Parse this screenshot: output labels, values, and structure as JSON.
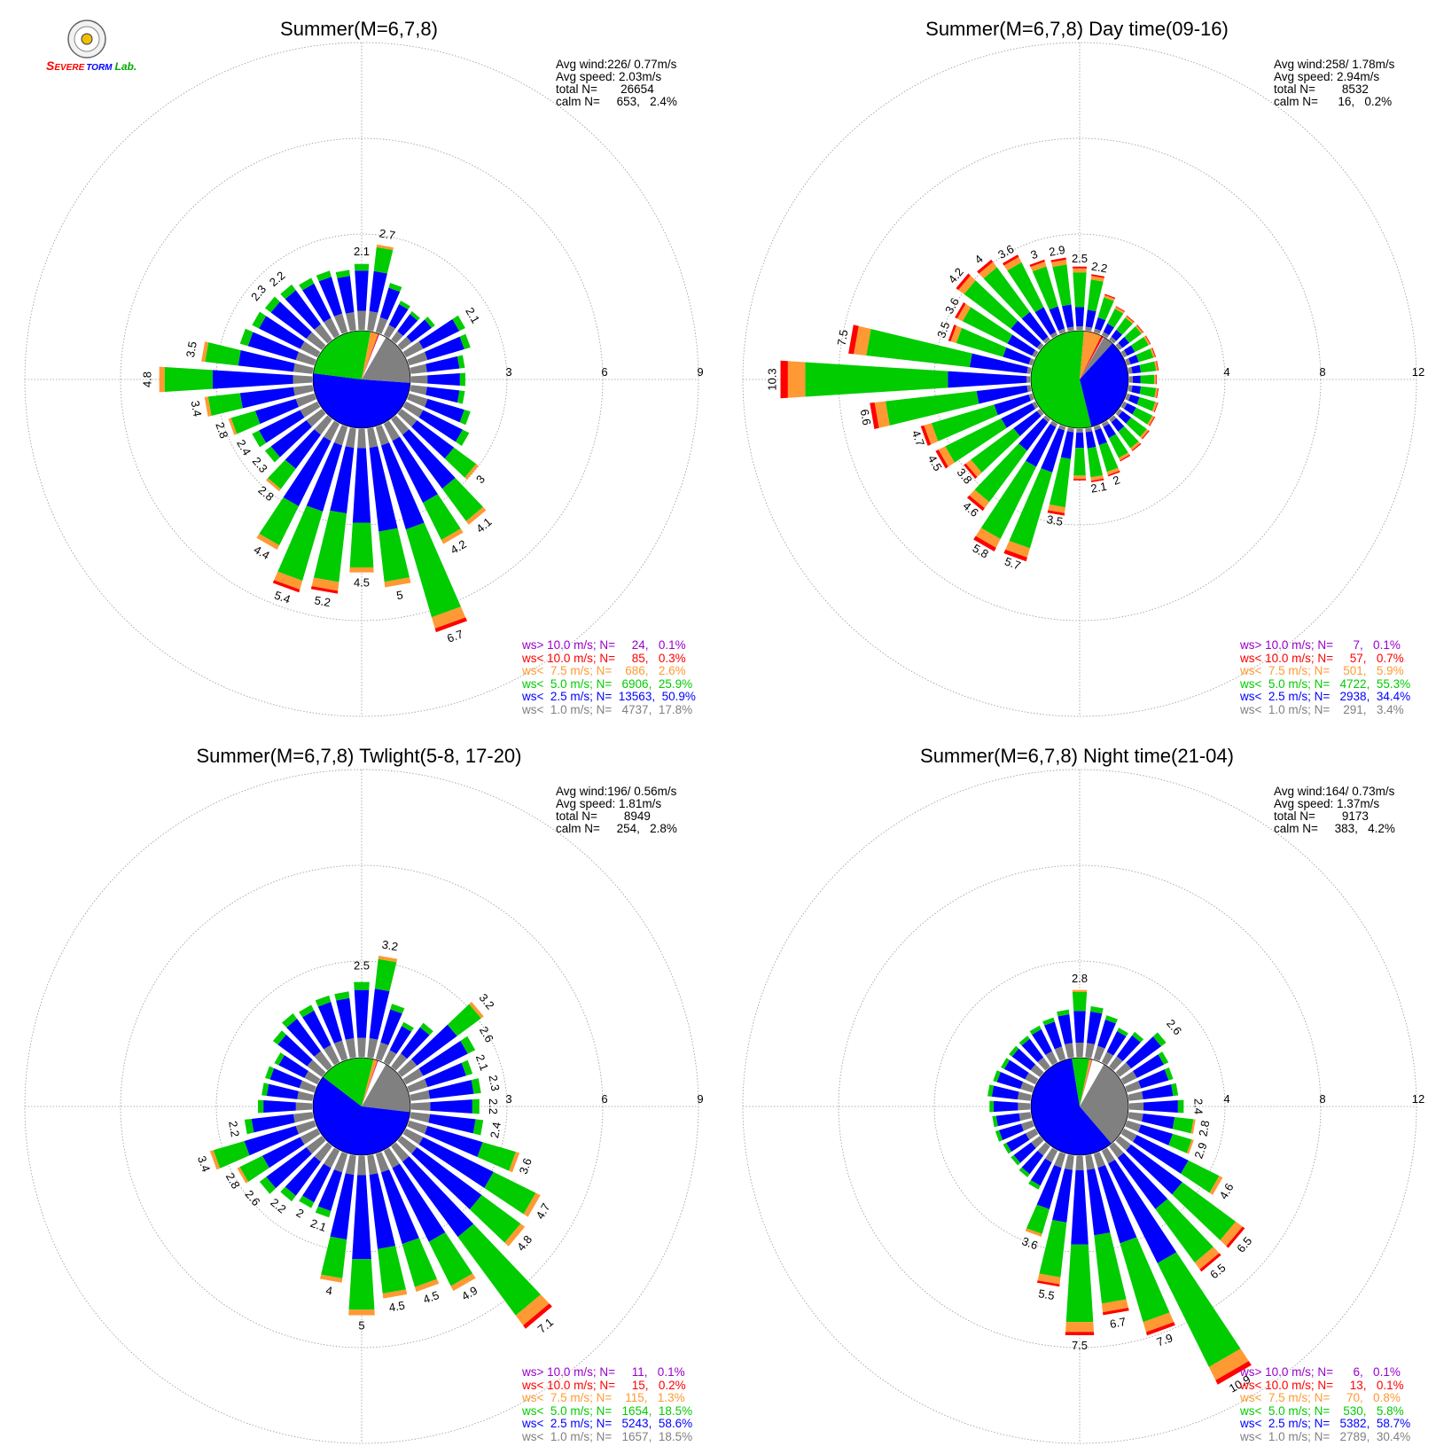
{
  "logo": {
    "text_s": "S",
    "text_evere": "EVERE",
    "text_torm": "TORM",
    "text_lab": "Lab."
  },
  "colors": {
    "gray": "#808080",
    "blue": "#0000ff",
    "green": "#00cc00",
    "orange": "#ff9933",
    "red": "#ff0000",
    "purple": "#9900cc",
    "grid": "#999999"
  },
  "panels": [
    {
      "title": "Summer(M=6,7,8)",
      "stats": {
        "avg_wind": "Avg wind:226/ 0.77m/s",
        "avg_speed": "Avg speed: 2.03m/s",
        "total": "total N=       26654",
        "calm": "calm N=     653,   2.4%"
      },
      "legend": [
        {
          "text": "ws> 10.0 m/s; N=     24,   0.1%",
          "color": "#9900cc"
        },
        {
          "text": "ws< 10.0 m/s; N=     85,   0.3%",
          "color": "#ff0000"
        },
        {
          "text": "ws<  7.5 m/s; N=    686,   2.6%",
          "color": "#ff9933"
        },
        {
          "text": "ws<  5.0 m/s; N=   6906,  25.9%",
          "color": "#00cc00"
        },
        {
          "text": "ws<  2.5 m/s; N=  13563,  50.9%",
          "color": "#0000ff"
        },
        {
          "text": "ws<  1.0 m/s; N=   4737,  17.8%",
          "color": "#808080"
        }
      ],
      "chart_data": {
        "type": "wind-rose",
        "ring_ticks": [
          "3",
          "6",
          "9"
        ],
        "max": 9,
        "hub_pie_fractions": {
          "gray": 0.178,
          "blue": 0.509,
          "green": 0.259,
          "orange": 0.026,
          "red": 0.003,
          "purple": 0.001
        },
        "directions_deg": [
          0,
          10,
          20,
          30,
          40,
          50,
          60,
          70,
          80,
          90,
          100,
          110,
          120,
          130,
          140,
          150,
          160,
          170,
          180,
          190,
          200,
          210,
          220,
          230,
          240,
          250,
          260,
          270,
          280,
          290,
          300,
          310,
          320,
          330,
          340,
          350
        ],
        "totals": [
          2.1,
          2.7,
          1.6,
          1.2,
          1.1,
          1.3,
          2.1,
          2.0,
          1.7,
          1.7,
          1.7,
          2.0,
          2.3,
          3.0,
          4.1,
          4.2,
          6.7,
          5.0,
          4.5,
          5.2,
          5.4,
          4.4,
          2.8,
          2.3,
          2.4,
          2.8,
          3.4,
          4.8,
          3.5,
          2.6,
          2.4,
          2.3,
          2.2,
          2.0,
          2.0,
          1.9
        ],
        "labeled_values": [
          2.1,
          2.7,
          null,
          null,
          null,
          null,
          2.1,
          null,
          null,
          null,
          null,
          null,
          null,
          3.0,
          4.1,
          4.2,
          6.7,
          5.0,
          4.5,
          5.2,
          5.4,
          4.4,
          2.8,
          2.3,
          2.4,
          2.8,
          3.4,
          4.8,
          3.5,
          null,
          null,
          2.3,
          2.2,
          null,
          null,
          null
        ]
      }
    },
    {
      "title": "Summer(M=6,7,8) Day time(09-16)",
      "stats": {
        "avg_wind": "Avg wind:258/ 1.78m/s",
        "avg_speed": "Avg speed: 2.94m/s",
        "total": "total N=        8532",
        "calm": "calm N=      16,   0.2%"
      },
      "legend": [
        {
          "text": "ws> 10.0 m/s; N=      7,   0.1%",
          "color": "#9900cc"
        },
        {
          "text": "ws< 10.0 m/s; N=     57,   0.7%",
          "color": "#ff0000"
        },
        {
          "text": "ws<  7.5 m/s; N=    501,   5.9%",
          "color": "#ff9933"
        },
        {
          "text": "ws<  5.0 m/s; N=   4722,  55.3%",
          "color": "#00cc00"
        },
        {
          "text": "ws<  2.5 m/s; N=   2938,  34.4%",
          "color": "#0000ff"
        },
        {
          "text": "ws<  1.0 m/s; N=    291,   3.4%",
          "color": "#808080"
        }
      ],
      "chart_data": {
        "type": "wind-rose",
        "ring_ticks": [
          "4",
          "8",
          "12"
        ],
        "max": 12,
        "hub_pie_fractions": {
          "gray": 0.034,
          "blue": 0.344,
          "green": 0.553,
          "orange": 0.059,
          "red": 0.007,
          "purple": 0.001
        },
        "directions_deg": [
          0,
          10,
          20,
          30,
          40,
          50,
          60,
          70,
          80,
          90,
          100,
          110,
          120,
          130,
          140,
          150,
          160,
          170,
          180,
          190,
          200,
          210,
          220,
          230,
          240,
          250,
          260,
          270,
          280,
          290,
          300,
          310,
          320,
          330,
          340,
          350
        ],
        "totals": [
          2.5,
          2.2,
          1.5,
          1.2,
          1.1,
          1.1,
          1.1,
          1.1,
          1.1,
          1.0,
          1.1,
          1.2,
          1.3,
          1.4,
          1.5,
          1.6,
          2.0,
          2.1,
          2.0,
          3.5,
          5.7,
          5.8,
          4.6,
          3.8,
          4.5,
          4.7,
          6.6,
          10.3,
          7.5,
          3.5,
          3.6,
          4.2,
          4.0,
          3.6,
          3.0,
          2.9
        ],
        "labeled_values": [
          2.5,
          2.2,
          null,
          null,
          null,
          null,
          null,
          null,
          null,
          null,
          null,
          null,
          null,
          null,
          null,
          null,
          2.0,
          2.1,
          null,
          3.5,
          5.7,
          5.8,
          4.6,
          3.8,
          4.5,
          4.7,
          6.6,
          10.3,
          7.5,
          3.5,
          3.6,
          4.2,
          4.0,
          3.6,
          3.0,
          2.9
        ]
      }
    },
    {
      "title": "Summer(M=6,7,8) Twlight(5-8, 17-20)",
      "stats": {
        "avg_wind": "Avg wind:196/ 0.56m/s",
        "avg_speed": "Avg speed: 1.81m/s",
        "total": "total N=        8949",
        "calm": "calm N=     254,   2.8%"
      },
      "legend": [
        {
          "text": "ws> 10.0 m/s; N=     11,   0.1%",
          "color": "#9900cc"
        },
        {
          "text": "ws< 10.0 m/s; N=     15,   0.2%",
          "color": "#ff0000"
        },
        {
          "text": "ws<  7.5 m/s; N=    115,   1.3%",
          "color": "#ff9933"
        },
        {
          "text": "ws<  5.0 m/s; N=   1654,  18.5%",
          "color": "#00cc00"
        },
        {
          "text": "ws<  2.5 m/s; N=   5243,  58.6%",
          "color": "#0000ff"
        },
        {
          "text": "ws<  1.0 m/s; N=   1657,  18.5%",
          "color": "#808080"
        }
      ],
      "chart_data": {
        "type": "wind-rose",
        "ring_ticks": [
          "3",
          "6",
          "9"
        ],
        "max": 9,
        "hub_pie_fractions": {
          "gray": 0.185,
          "blue": 0.586,
          "green": 0.185,
          "orange": 0.013,
          "red": 0.002,
          "purple": 0.001
        },
        "directions_deg": [
          0,
          10,
          20,
          30,
          40,
          50,
          60,
          70,
          80,
          90,
          100,
          110,
          120,
          130,
          140,
          150,
          160,
          170,
          180,
          190,
          200,
          210,
          220,
          230,
          240,
          250,
          260,
          270,
          280,
          290,
          300,
          310,
          320,
          330,
          340,
          350
        ],
        "totals": [
          2.5,
          3.2,
          1.8,
          1.4,
          1.7,
          3.2,
          2.6,
          2.1,
          2.3,
          2.2,
          2.4,
          3.6,
          4.7,
          4.8,
          7.1,
          4.9,
          4.5,
          4.5,
          5.0,
          4.0,
          2.1,
          2.0,
          2.2,
          2.6,
          2.8,
          3.4,
          2.2,
          1.7,
          1.6,
          1.6,
          1.5,
          1.9,
          2.1,
          2.0,
          2.1,
          2.1
        ],
        "labeled_values": [
          2.5,
          3.2,
          null,
          null,
          null,
          3.2,
          2.6,
          2.1,
          2.3,
          2.2,
          2.4,
          3.6,
          4.7,
          4.8,
          7.1,
          4.9,
          4.5,
          4.5,
          5.0,
          4.0,
          2.1,
          2.0,
          2.2,
          2.6,
          2.8,
          3.4,
          2.2,
          null,
          null,
          null,
          null,
          null,
          null,
          null,
          null,
          null
        ]
      }
    },
    {
      "title": "Summer(M=6,7,8) Night time(21-04)",
      "stats": {
        "avg_wind": "Avg wind:164/ 0.73m/s",
        "avg_speed": "Avg speed: 1.37m/s",
        "total": "total N=        9173",
        "calm": "calm N=     383,   4.2%"
      },
      "legend": [
        {
          "text": "ws> 10.0 m/s; N=      6,   0.1%",
          "color": "#9900cc"
        },
        {
          "text": "ws< 10.0 m/s; N=     13,   0.1%",
          "color": "#ff0000"
        },
        {
          "text": "ws<  7.5 m/s; N=     70,   0.8%",
          "color": "#ff9933"
        },
        {
          "text": "ws<  5.0 m/s; N=    530,   5.8%",
          "color": "#00cc00"
        },
        {
          "text": "ws<  2.5 m/s; N=   5382,  58.7%",
          "color": "#0000ff"
        },
        {
          "text": "ws<  1.0 m/s; N=   2789,  30.4%",
          "color": "#808080"
        }
      ],
      "chart_data": {
        "type": "wind-rose",
        "ring_ticks": [
          "4",
          "8",
          "12"
        ],
        "max": 12,
        "hub_pie_fractions": {
          "gray": 0.304,
          "blue": 0.587,
          "green": 0.058,
          "orange": 0.008,
          "red": 0.001,
          "purple": 0.001
        },
        "directions_deg": [
          0,
          10,
          20,
          30,
          40,
          50,
          60,
          70,
          80,
          90,
          100,
          110,
          120,
          130,
          140,
          150,
          160,
          170,
          180,
          190,
          200,
          210,
          220,
          230,
          240,
          250,
          260,
          270,
          280,
          290,
          300,
          310,
          320,
          330,
          340,
          350
        ],
        "totals": [
          2.8,
          2.2,
          1.9,
          1.6,
          1.8,
          2.6,
          2.1,
          2.0,
          2.1,
          2.4,
          2.8,
          2.9,
          4.6,
          6.5,
          6.5,
          10.9,
          7.9,
          6.7,
          7.5,
          5.5,
          3.6,
          1.8,
          1.6,
          1.5,
          1.5,
          1.6,
          1.6,
          1.7,
          1.8,
          1.7,
          1.6,
          1.6,
          1.6,
          1.7,
          1.8,
          2.0
        ],
        "labeled_values": [
          2.8,
          null,
          null,
          null,
          null,
          2.6,
          null,
          null,
          null,
          2.4,
          2.8,
          2.9,
          4.6,
          6.5,
          6.5,
          10.9,
          7.9,
          6.7,
          7.5,
          5.5,
          3.6,
          null,
          null,
          null,
          null,
          null,
          null,
          null,
          null,
          null,
          null,
          null,
          null,
          null,
          null,
          null
        ]
      }
    }
  ]
}
